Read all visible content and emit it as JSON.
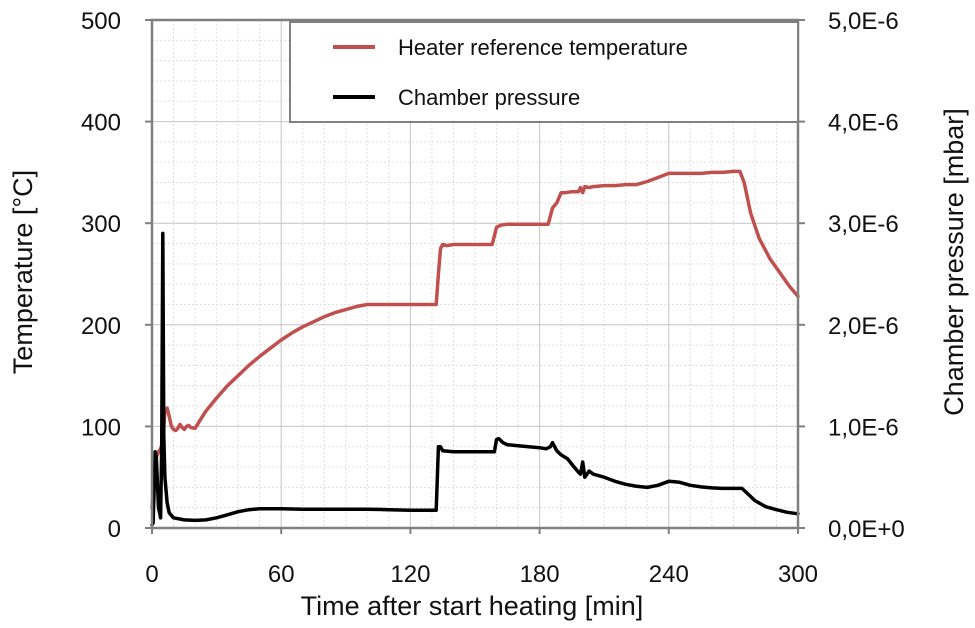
{
  "chart_data": {
    "type": "line",
    "title": "",
    "xlabel": "Time after start heating [min]",
    "ylabel_left": "Temperature [°C]",
    "ylabel_right": "Chamber pressure [mbar]",
    "xlim": [
      0,
      300
    ],
    "ylim_left": [
      0,
      500
    ],
    "ylim_right": [
      0,
      5e-06
    ],
    "x_ticks": [
      0,
      60,
      120,
      180,
      240,
      300
    ],
    "x_tick_labels": [
      "0",
      "60",
      "120",
      "180",
      "240",
      "300"
    ],
    "y_left_ticks": [
      0,
      100,
      200,
      300,
      400,
      500
    ],
    "y_left_tick_labels": [
      "0",
      "100",
      "200",
      "300",
      "400",
      "500"
    ],
    "y_right_ticks": [
      0,
      1e-06,
      2e-06,
      3e-06,
      4e-06,
      5e-06
    ],
    "y_right_tick_labels": [
      "0,0E+0",
      "1,0E-6",
      "2,0E-6",
      "3,0E-6",
      "4,0E-6",
      "5,0E-6"
    ],
    "grid": true,
    "legend_position": "top-right",
    "series": [
      {
        "name": "Heater reference temperature",
        "axis": "left",
        "color": "#c0504d",
        "points": [
          [
            0,
            20
          ],
          [
            2,
            70
          ],
          [
            3,
            75
          ],
          [
            4,
            78
          ],
          [
            5,
            85
          ],
          [
            6,
            115
          ],
          [
            7,
            118
          ],
          [
            8,
            110
          ],
          [
            9,
            100
          ],
          [
            10,
            97
          ],
          [
            11,
            96
          ],
          [
            12,
            98
          ],
          [
            13,
            102
          ],
          [
            14,
            99
          ],
          [
            15,
            97
          ],
          [
            16,
            100
          ],
          [
            17,
            101
          ],
          [
            18,
            99
          ],
          [
            20,
            98
          ],
          [
            22,
            105
          ],
          [
            25,
            115
          ],
          [
            30,
            128
          ],
          [
            35,
            140
          ],
          [
            40,
            150
          ],
          [
            45,
            160
          ],
          [
            50,
            169
          ],
          [
            55,
            177
          ],
          [
            60,
            185
          ],
          [
            65,
            192
          ],
          [
            70,
            198
          ],
          [
            75,
            203
          ],
          [
            80,
            208
          ],
          [
            85,
            212
          ],
          [
            90,
            215
          ],
          [
            95,
            218
          ],
          [
            100,
            220
          ],
          [
            105,
            220
          ],
          [
            110,
            220
          ],
          [
            115,
            220
          ],
          [
            120,
            220
          ],
          [
            125,
            220
          ],
          [
            132,
            220
          ],
          [
            133,
            250
          ],
          [
            134,
            275
          ],
          [
            135,
            279
          ],
          [
            137,
            278
          ],
          [
            140,
            279
          ],
          [
            145,
            279
          ],
          [
            150,
            279
          ],
          [
            155,
            279
          ],
          [
            158,
            279
          ],
          [
            160,
            296
          ],
          [
            162,
            298
          ],
          [
            165,
            299
          ],
          [
            170,
            299
          ],
          [
            175,
            299
          ],
          [
            180,
            299
          ],
          [
            184,
            299
          ],
          [
            186,
            315
          ],
          [
            188,
            320
          ],
          [
            190,
            330
          ],
          [
            192,
            330
          ],
          [
            195,
            331
          ],
          [
            198,
            331
          ],
          [
            199,
            335
          ],
          [
            200,
            330
          ],
          [
            201,
            336
          ],
          [
            203,
            335
          ],
          [
            205,
            336
          ],
          [
            210,
            337
          ],
          [
            215,
            337
          ],
          [
            220,
            338
          ],
          [
            225,
            338
          ],
          [
            230,
            341
          ],
          [
            235,
            345
          ],
          [
            240,
            349
          ],
          [
            245,
            349
          ],
          [
            250,
            349
          ],
          [
            255,
            349
          ],
          [
            260,
            350
          ],
          [
            265,
            350
          ],
          [
            270,
            351
          ],
          [
            273,
            351
          ],
          [
            275,
            340
          ],
          [
            278,
            310
          ],
          [
            282,
            285
          ],
          [
            287,
            265
          ],
          [
            292,
            250
          ],
          [
            296,
            238
          ],
          [
            300,
            228
          ]
        ]
      },
      {
        "name": "Chamber pressure",
        "axis": "right",
        "color": "#000000",
        "points": [
          [
            0,
            3e-08
          ],
          [
            0.5,
            5e-08
          ],
          [
            1,
            4e-07
          ],
          [
            1.5,
            7.5e-07
          ],
          [
            2,
            7e-07
          ],
          [
            3,
            2e-07
          ],
          [
            4,
            1e-07
          ],
          [
            4.5,
            8e-07
          ],
          [
            5,
            2.9e-06
          ],
          [
            5.5,
            9e-07
          ],
          [
            6,
            5e-07
          ],
          [
            7,
            2.5e-07
          ],
          [
            8,
            1.5e-07
          ],
          [
            10,
            1e-07
          ],
          [
            15,
            8e-08
          ],
          [
            20,
            7.5e-08
          ],
          [
            25,
            8e-08
          ],
          [
            30,
            1e-07
          ],
          [
            35,
            1.3e-07
          ],
          [
            40,
            1.6e-07
          ],
          [
            45,
            1.8e-07
          ],
          [
            50,
            1.9e-07
          ],
          [
            60,
            1.9e-07
          ],
          [
            70,
            1.85e-07
          ],
          [
            80,
            1.85e-07
          ],
          [
            90,
            1.85e-07
          ],
          [
            100,
            1.85e-07
          ],
          [
            110,
            1.8e-07
          ],
          [
            120,
            1.75e-07
          ],
          [
            125,
            1.75e-07
          ],
          [
            130,
            1.75e-07
          ],
          [
            132,
            1.75e-07
          ],
          [
            133,
            8e-07
          ],
          [
            134,
            8e-07
          ],
          [
            135,
            7.6e-07
          ],
          [
            140,
            7.5e-07
          ],
          [
            150,
            7.5e-07
          ],
          [
            155,
            7.5e-07
          ],
          [
            159,
            7.5e-07
          ],
          [
            160,
            8.7e-07
          ],
          [
            161,
            8.8e-07
          ],
          [
            163,
            8.4e-07
          ],
          [
            165,
            8.2e-07
          ],
          [
            170,
            8.1e-07
          ],
          [
            175,
            8e-07
          ],
          [
            180,
            7.9e-07
          ],
          [
            183,
            7.8e-07
          ],
          [
            185,
            8e-07
          ],
          [
            186,
            8.4e-07
          ],
          [
            188,
            7.6e-07
          ],
          [
            190,
            7.2e-07
          ],
          [
            193,
            6.8e-07
          ],
          [
            196,
            6e-07
          ],
          [
            198,
            5.5e-07
          ],
          [
            199,
            5.3e-07
          ],
          [
            200,
            6.5e-07
          ],
          [
            201,
            5e-07
          ],
          [
            203,
            5.6e-07
          ],
          [
            205,
            5.3e-07
          ],
          [
            210,
            5e-07
          ],
          [
            215,
            4.6e-07
          ],
          [
            220,
            4.3e-07
          ],
          [
            225,
            4.1e-07
          ],
          [
            230,
            4e-07
          ],
          [
            235,
            4.2e-07
          ],
          [
            240,
            4.6e-07
          ],
          [
            245,
            4.5e-07
          ],
          [
            250,
            4.2e-07
          ],
          [
            255,
            4.05e-07
          ],
          [
            260,
            3.95e-07
          ],
          [
            265,
            3.9e-07
          ],
          [
            270,
            3.9e-07
          ],
          [
            274,
            3.9e-07
          ],
          [
            276,
            3.5e-07
          ],
          [
            280,
            2.7e-07
          ],
          [
            285,
            2.1e-07
          ],
          [
            290,
            1.8e-07
          ],
          [
            295,
            1.55e-07
          ],
          [
            300,
            1.4e-07
          ]
        ]
      }
    ]
  }
}
